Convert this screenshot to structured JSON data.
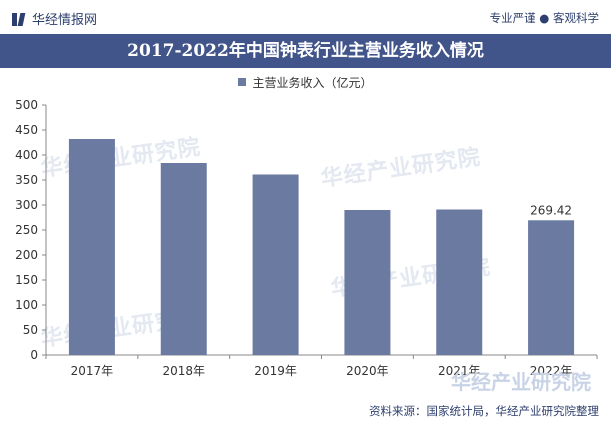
{
  "header": {
    "brand": "华经情报网",
    "slogan": "专业严谨 ● 客观科学"
  },
  "chart_data": {
    "type": "bar",
    "title": "2017-2022年中国钟表行业主营业务收入情况",
    "categories": [
      "2017年",
      "2018年",
      "2019年",
      "2020年",
      "2021年",
      "2022年"
    ],
    "series": [
      {
        "name": "主营业务收入（亿元）",
        "values": [
          432,
          384,
          361,
          290,
          291,
          269.42
        ],
        "color": "#6a7aa0"
      }
    ],
    "data_labels": [
      null,
      null,
      null,
      null,
      null,
      "269.42"
    ],
    "ylim": [
      0,
      500
    ],
    "yticks": [
      0,
      50,
      100,
      150,
      200,
      250,
      300,
      350,
      400,
      450,
      500
    ],
    "grid": false,
    "legend_position": "top-center"
  },
  "watermark": "华经产业研究院",
  "source": "资料来源：国家统计局，华经产业研究院整理"
}
